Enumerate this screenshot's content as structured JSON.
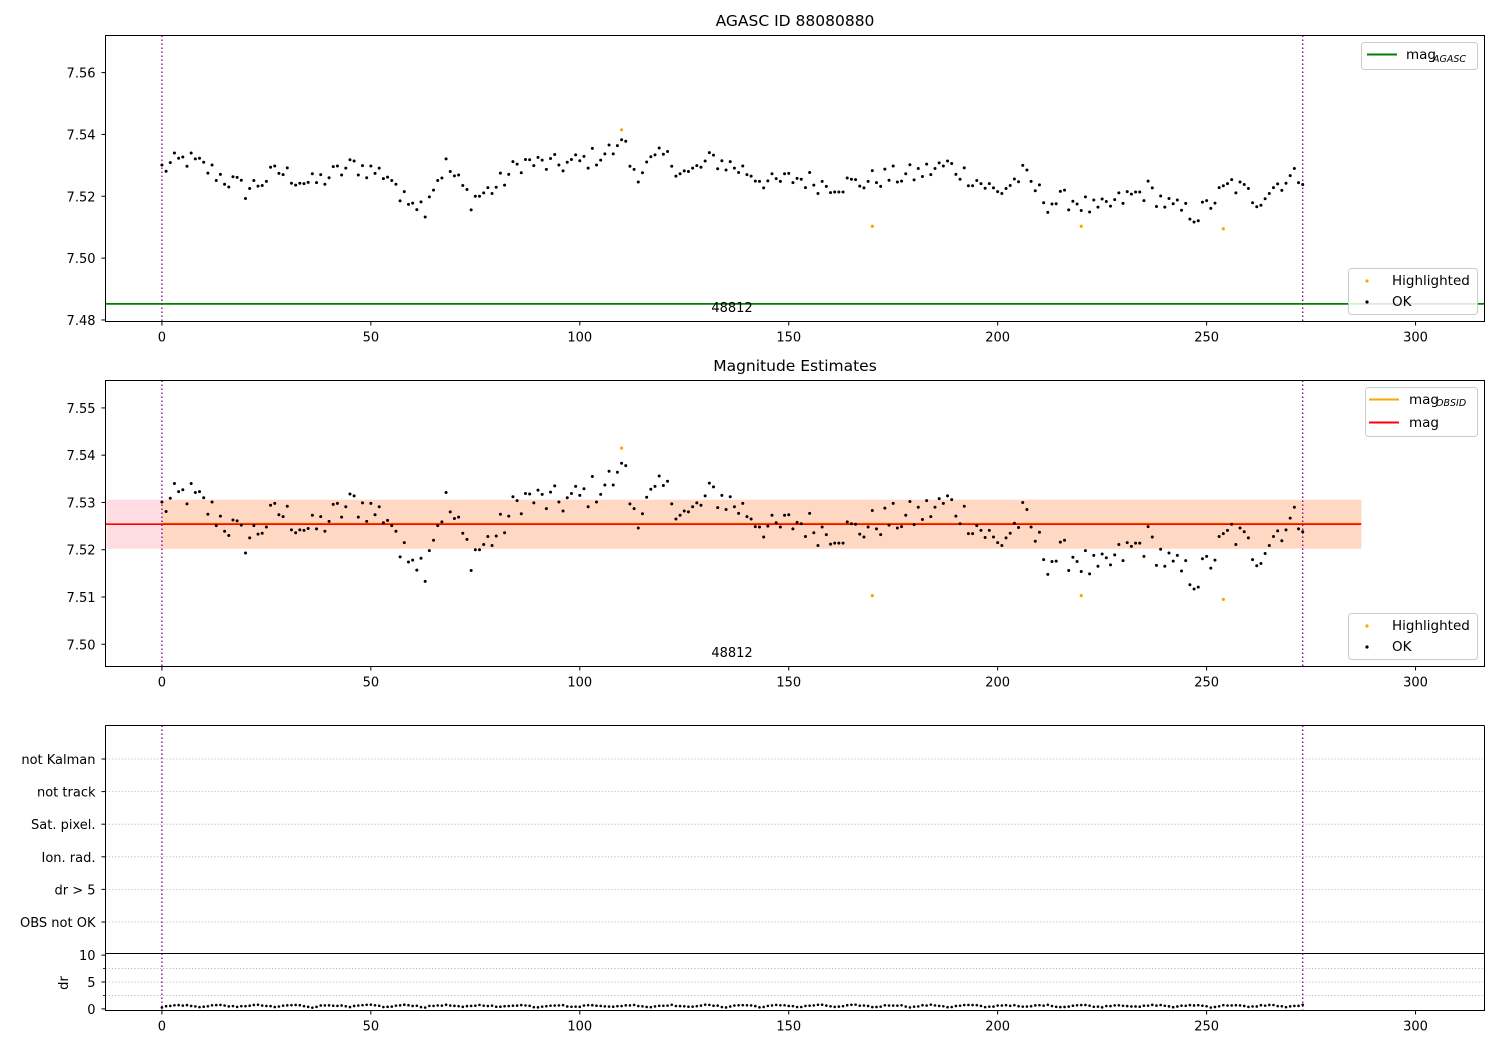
{
  "colors": {
    "ok": "#000000",
    "highlighted": "#ffa500",
    "agasc_line": "#008000",
    "obsid_line": "#ffa500",
    "mag_line": "#ff0000",
    "obsid_band": "#ffd8c4",
    "mag_band": "#ffdde2",
    "obs_boundary": "#800080",
    "grid": "#b0b0b0"
  },
  "chart_data": [
    {
      "type": "scatter",
      "title": "AGASC ID 88080880",
      "xlim": [
        -13.5,
        316.5
      ],
      "ylim": [
        7.4795,
        7.572
      ],
      "xticks": [
        0,
        50,
        100,
        150,
        200,
        250,
        300
      ],
      "yticks": [
        7.48,
        7.5,
        7.52,
        7.54,
        7.56
      ],
      "ytick_labels": [
        "7.48",
        "7.50",
        "7.52",
        "7.54",
        "7.56"
      ],
      "series": [
        {
          "name": "OK",
          "marker": "point",
          "color": "#000000"
        },
        {
          "name": "Highlighted",
          "marker": "point",
          "color": "#ffa500",
          "x": [
            110,
            170,
            220,
            254
          ],
          "y": [
            7.5415,
            7.5103,
            7.5103,
            7.5095
          ]
        }
      ],
      "hlines": [
        {
          "label_main": "mag",
          "label_sub": "AGASC",
          "value": 7.4852,
          "color": "#008000"
        }
      ],
      "obs_boundaries": [
        0,
        273
      ],
      "annotation": {
        "text": "48812",
        "x": 136.5
      },
      "legends": {
        "lines_position": "upper right",
        "points_position": "lower right"
      }
    },
    {
      "type": "scatter",
      "title": "Magnitude Estimates",
      "xlim": [
        -13.5,
        316.5
      ],
      "ylim": [
        7.4953,
        7.5558
      ],
      "xticks": [
        0,
        50,
        100,
        150,
        200,
        250,
        300
      ],
      "yticks": [
        7.5,
        7.51,
        7.52,
        7.53,
        7.54,
        7.55
      ],
      "ytick_labels": [
        "7.50",
        "7.51",
        "7.52",
        "7.53",
        "7.54",
        "7.55"
      ],
      "series": [
        {
          "name": "OK",
          "marker": "point",
          "color": "#000000"
        },
        {
          "name": "Highlighted",
          "marker": "point",
          "color": "#ffa500",
          "x": [
            110,
            170,
            220,
            254
          ],
          "y": [
            7.5415,
            7.5103,
            7.5103,
            7.5095
          ]
        }
      ],
      "hlines": [
        {
          "label_main": "mag",
          "label_sub": "OBSID",
          "value": 7.5255,
          "color": "#ffa500",
          "band": [
            7.5203,
            7.5305
          ],
          "band_color": "#ffd8c4",
          "x_range": [
            0,
            287
          ]
        },
        {
          "label_main": "mag",
          "label_sub": "",
          "value": 7.5254,
          "color": "#ff0000",
          "band": [
            7.5202,
            7.5306
          ],
          "band_color": "#ffdde2",
          "x_range": [
            -13.5,
            287
          ]
        }
      ],
      "obs_boundaries": [
        0,
        273
      ],
      "annotation": {
        "text": "48812",
        "x": 136.5
      },
      "legends": {
        "lines_position": "upper right",
        "points_position": "lower right"
      }
    },
    {
      "type": "scatter",
      "title": "",
      "xlim": [
        -13.5,
        316.5
      ],
      "flag_rows": [
        "not Kalman",
        "not track",
        "Sat. pixel.",
        "Ion. rad.",
        "dr > 5",
        "OBS not OK"
      ],
      "obs_boundaries": [
        0,
        273
      ]
    },
    {
      "type": "scatter",
      "title": "",
      "ylabel": "dr",
      "xlim": [
        -13.5,
        316.5
      ],
      "ylim": [
        -0.3,
        10.3
      ],
      "xticks": [
        0,
        50,
        100,
        150,
        200,
        250,
        300
      ],
      "yticks": [
        0,
        5,
        10
      ],
      "ytick_labels": [
        "0",
        "5",
        "10"
      ],
      "series": [
        {
          "name": "",
          "marker": "point",
          "color": "#000000"
        }
      ],
      "obs_boundaries": [
        0,
        273
      ]
    }
  ]
}
